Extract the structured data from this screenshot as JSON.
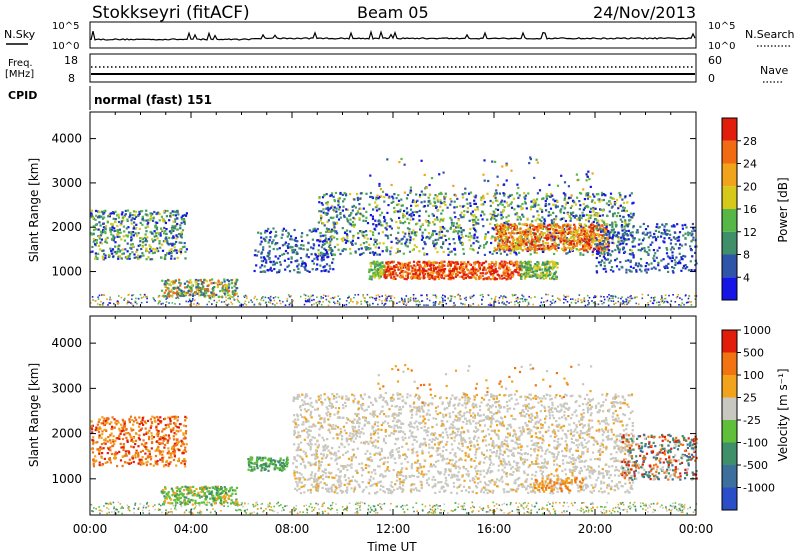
{
  "header": {
    "station": "Stokkseyri (fitACF)",
    "beam": "Beam 05",
    "date": "24/Nov/2013"
  },
  "noise_panel": {
    "left_label": "N.Sky",
    "right_label": "N.Search",
    "left_ticks": [
      "10^5",
      "10^0"
    ],
    "right_ticks": [
      "10^5",
      "10^0"
    ]
  },
  "freq_panel": {
    "left_label_1": "Freq.",
    "left_label_2": "[MHz]",
    "right_label": "Nave",
    "left_ticks": [
      "18",
      "8"
    ],
    "right_ticks": [
      "60",
      "0"
    ]
  },
  "cpid_panel": {
    "label": "CPID",
    "mode": "normal (fast) 151"
  },
  "colors": {
    "blue": "#1f3fd6",
    "steel": "#2b5f8f",
    "green": "#4f9a4a",
    "light_green": "#8ec24a",
    "yellow": "#e0c51d",
    "orange": "#f08a1c",
    "red": "#e2230e",
    "gray": "#c9c9c2"
  },
  "chart_data": [
    {
      "type": "heatmap",
      "title": "",
      "xlabel": "",
      "ylabel": "Slant Range [km]",
      "x_ticks": [
        "00:00",
        "04:00",
        "08:00",
        "12:00",
        "16:00",
        "20:00",
        "00:00"
      ],
      "y_ticks": [
        "1000",
        "2000",
        "3000",
        "4000"
      ],
      "ylim": [
        200,
        4600
      ],
      "colorbar_label": "Power [dB]",
      "colorbar_ticks": [
        "4",
        "8",
        "12",
        "16",
        "20",
        "24",
        "28"
      ],
      "colorbar_colors": [
        "#1515e6",
        "#2f55a8",
        "#3f8f6a",
        "#56b646",
        "#d7c91a",
        "#f2a31c",
        "#f26a12",
        "#e21d0b"
      ]
    },
    {
      "type": "heatmap",
      "title": "",
      "xlabel": "Time UT",
      "ylabel": "Slant Range [km]",
      "x_ticks": [
        "00:00",
        "04:00",
        "08:00",
        "12:00",
        "16:00",
        "20:00",
        "00:00"
      ],
      "y_ticks": [
        "1000",
        "2000",
        "3000",
        "4000"
      ],
      "ylim": [
        200,
        4600
      ],
      "colorbar_label": "Velocity [m s⁻¹]",
      "colorbar_ticks": [
        "1000",
        "500",
        "100",
        "25",
        "-25",
        "-100",
        "-500",
        "-1000"
      ],
      "colorbar_colors": [
        "#2a4ec8",
        "#3c6f9c",
        "#3f8f6a",
        "#5fbf3a",
        "#c8c8c0",
        "#f2a31c",
        "#f27312",
        "#e21d0b"
      ]
    }
  ]
}
